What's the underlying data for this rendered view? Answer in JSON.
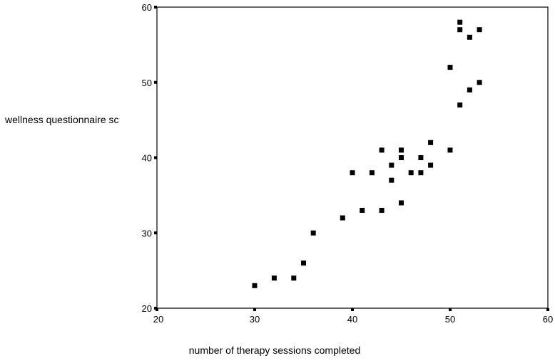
{
  "chart_data": {
    "type": "scatter",
    "title": "",
    "xlabel": "number of therapy sessions completed",
    "ylabel": "wellness questionnaire sc",
    "xlim": [
      20,
      60
    ],
    "ylim": [
      20,
      60
    ],
    "x_ticks": [
      20,
      30,
      40,
      50,
      60
    ],
    "y_ticks": [
      20,
      30,
      40,
      50,
      60
    ],
    "grid": false,
    "marker": "square",
    "marker_color": "#000000",
    "series": [
      {
        "points": [
          [
            30,
            23
          ],
          [
            32,
            24
          ],
          [
            34,
            24
          ],
          [
            35,
            26
          ],
          [
            36,
            30
          ],
          [
            39,
            32
          ],
          [
            40,
            38
          ],
          [
            41,
            33
          ],
          [
            42,
            38
          ],
          [
            43,
            41
          ],
          [
            43,
            33
          ],
          [
            44,
            39
          ],
          [
            44,
            37
          ],
          [
            45,
            41
          ],
          [
            45,
            40
          ],
          [
            45,
            34
          ],
          [
            46,
            38
          ],
          [
            47,
            40
          ],
          [
            47,
            38
          ],
          [
            48,
            42
          ],
          [
            48,
            39
          ],
          [
            50,
            52
          ],
          [
            50,
            41
          ],
          [
            51,
            58
          ],
          [
            51,
            57
          ],
          [
            51,
            47
          ],
          [
            52,
            56
          ],
          [
            52,
            49
          ],
          [
            53,
            57
          ],
          [
            53,
            50
          ]
        ]
      }
    ]
  }
}
